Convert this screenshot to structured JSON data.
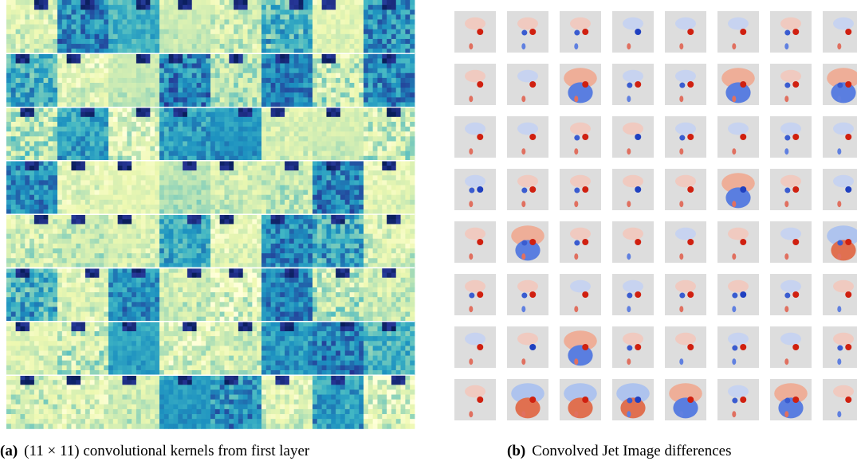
{
  "figures": [
    {
      "label": "(a)",
      "caption": "(11 × 11) convolutional kernels from first layer"
    },
    {
      "label": "(b)",
      "caption": "Convolved Jet Image differences"
    }
  ]
}
